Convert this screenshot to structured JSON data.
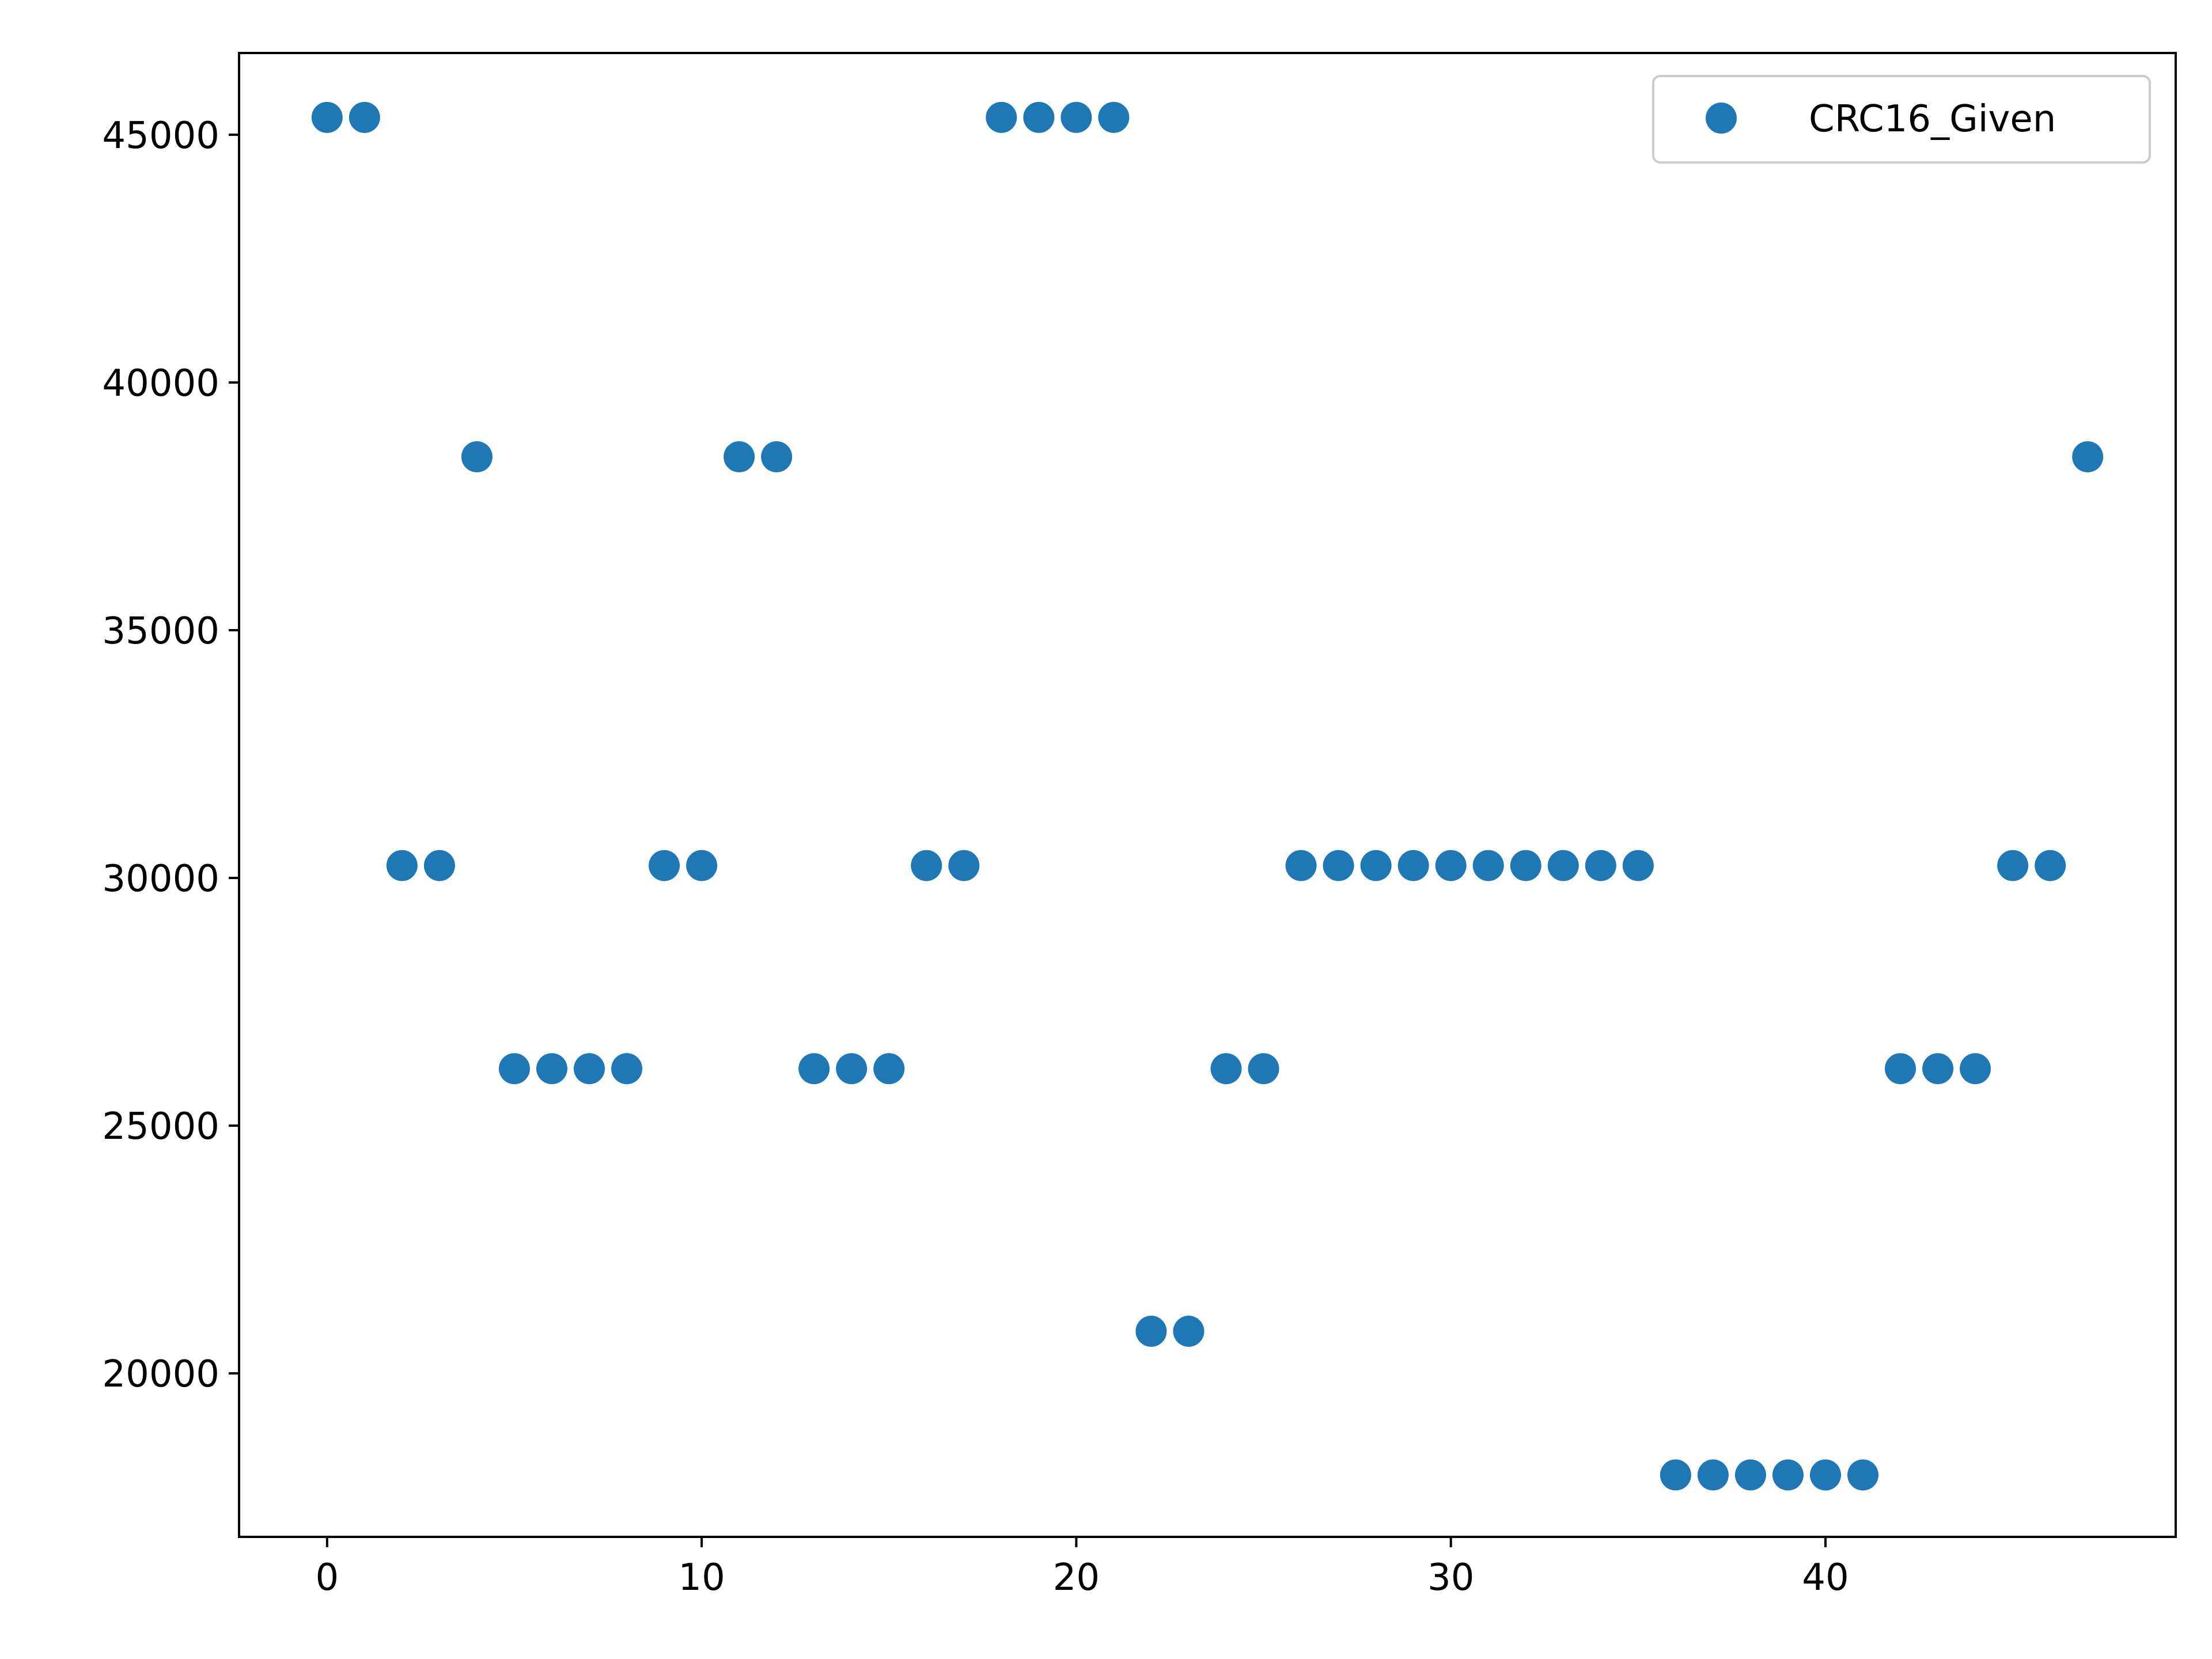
{
  "chart_data": {
    "type": "scatter",
    "title": "",
    "xlabel": "",
    "ylabel": "",
    "xlim": [
      -2.35,
      49.35
    ],
    "ylim": [
      16700,
      46650
    ],
    "xticks": [
      0,
      10,
      20,
      30,
      40
    ],
    "yticks": [
      20000,
      25000,
      30000,
      35000,
      40000,
      45000
    ],
    "grid": false,
    "legend_position": "top-right",
    "series": [
      {
        "name": "CRC16_Given",
        "color": "#1f77b4",
        "x": [
          0,
          1,
          2,
          3,
          4,
          5,
          6,
          7,
          8,
          9,
          10,
          11,
          12,
          13,
          14,
          15,
          16,
          17,
          18,
          19,
          20,
          21,
          22,
          23,
          24,
          25,
          26,
          27,
          28,
          29,
          30,
          31,
          32,
          33,
          34,
          35,
          36,
          37,
          38,
          39,
          40,
          41,
          42,
          43,
          44,
          45,
          46,
          47
        ],
        "y": [
          45350,
          45350,
          30250,
          30250,
          38500,
          26150,
          26150,
          26150,
          26150,
          30250,
          30250,
          38500,
          38500,
          26150,
          26150,
          26150,
          30250,
          30250,
          45350,
          45350,
          45350,
          45350,
          20850,
          20850,
          26150,
          26150,
          30250,
          30250,
          30250,
          30250,
          30250,
          30250,
          30250,
          30250,
          30250,
          30250,
          17950,
          17950,
          17950,
          17950,
          17950,
          17950,
          26150,
          26150,
          26150,
          30250,
          30250,
          38500
        ]
      }
    ]
  }
}
